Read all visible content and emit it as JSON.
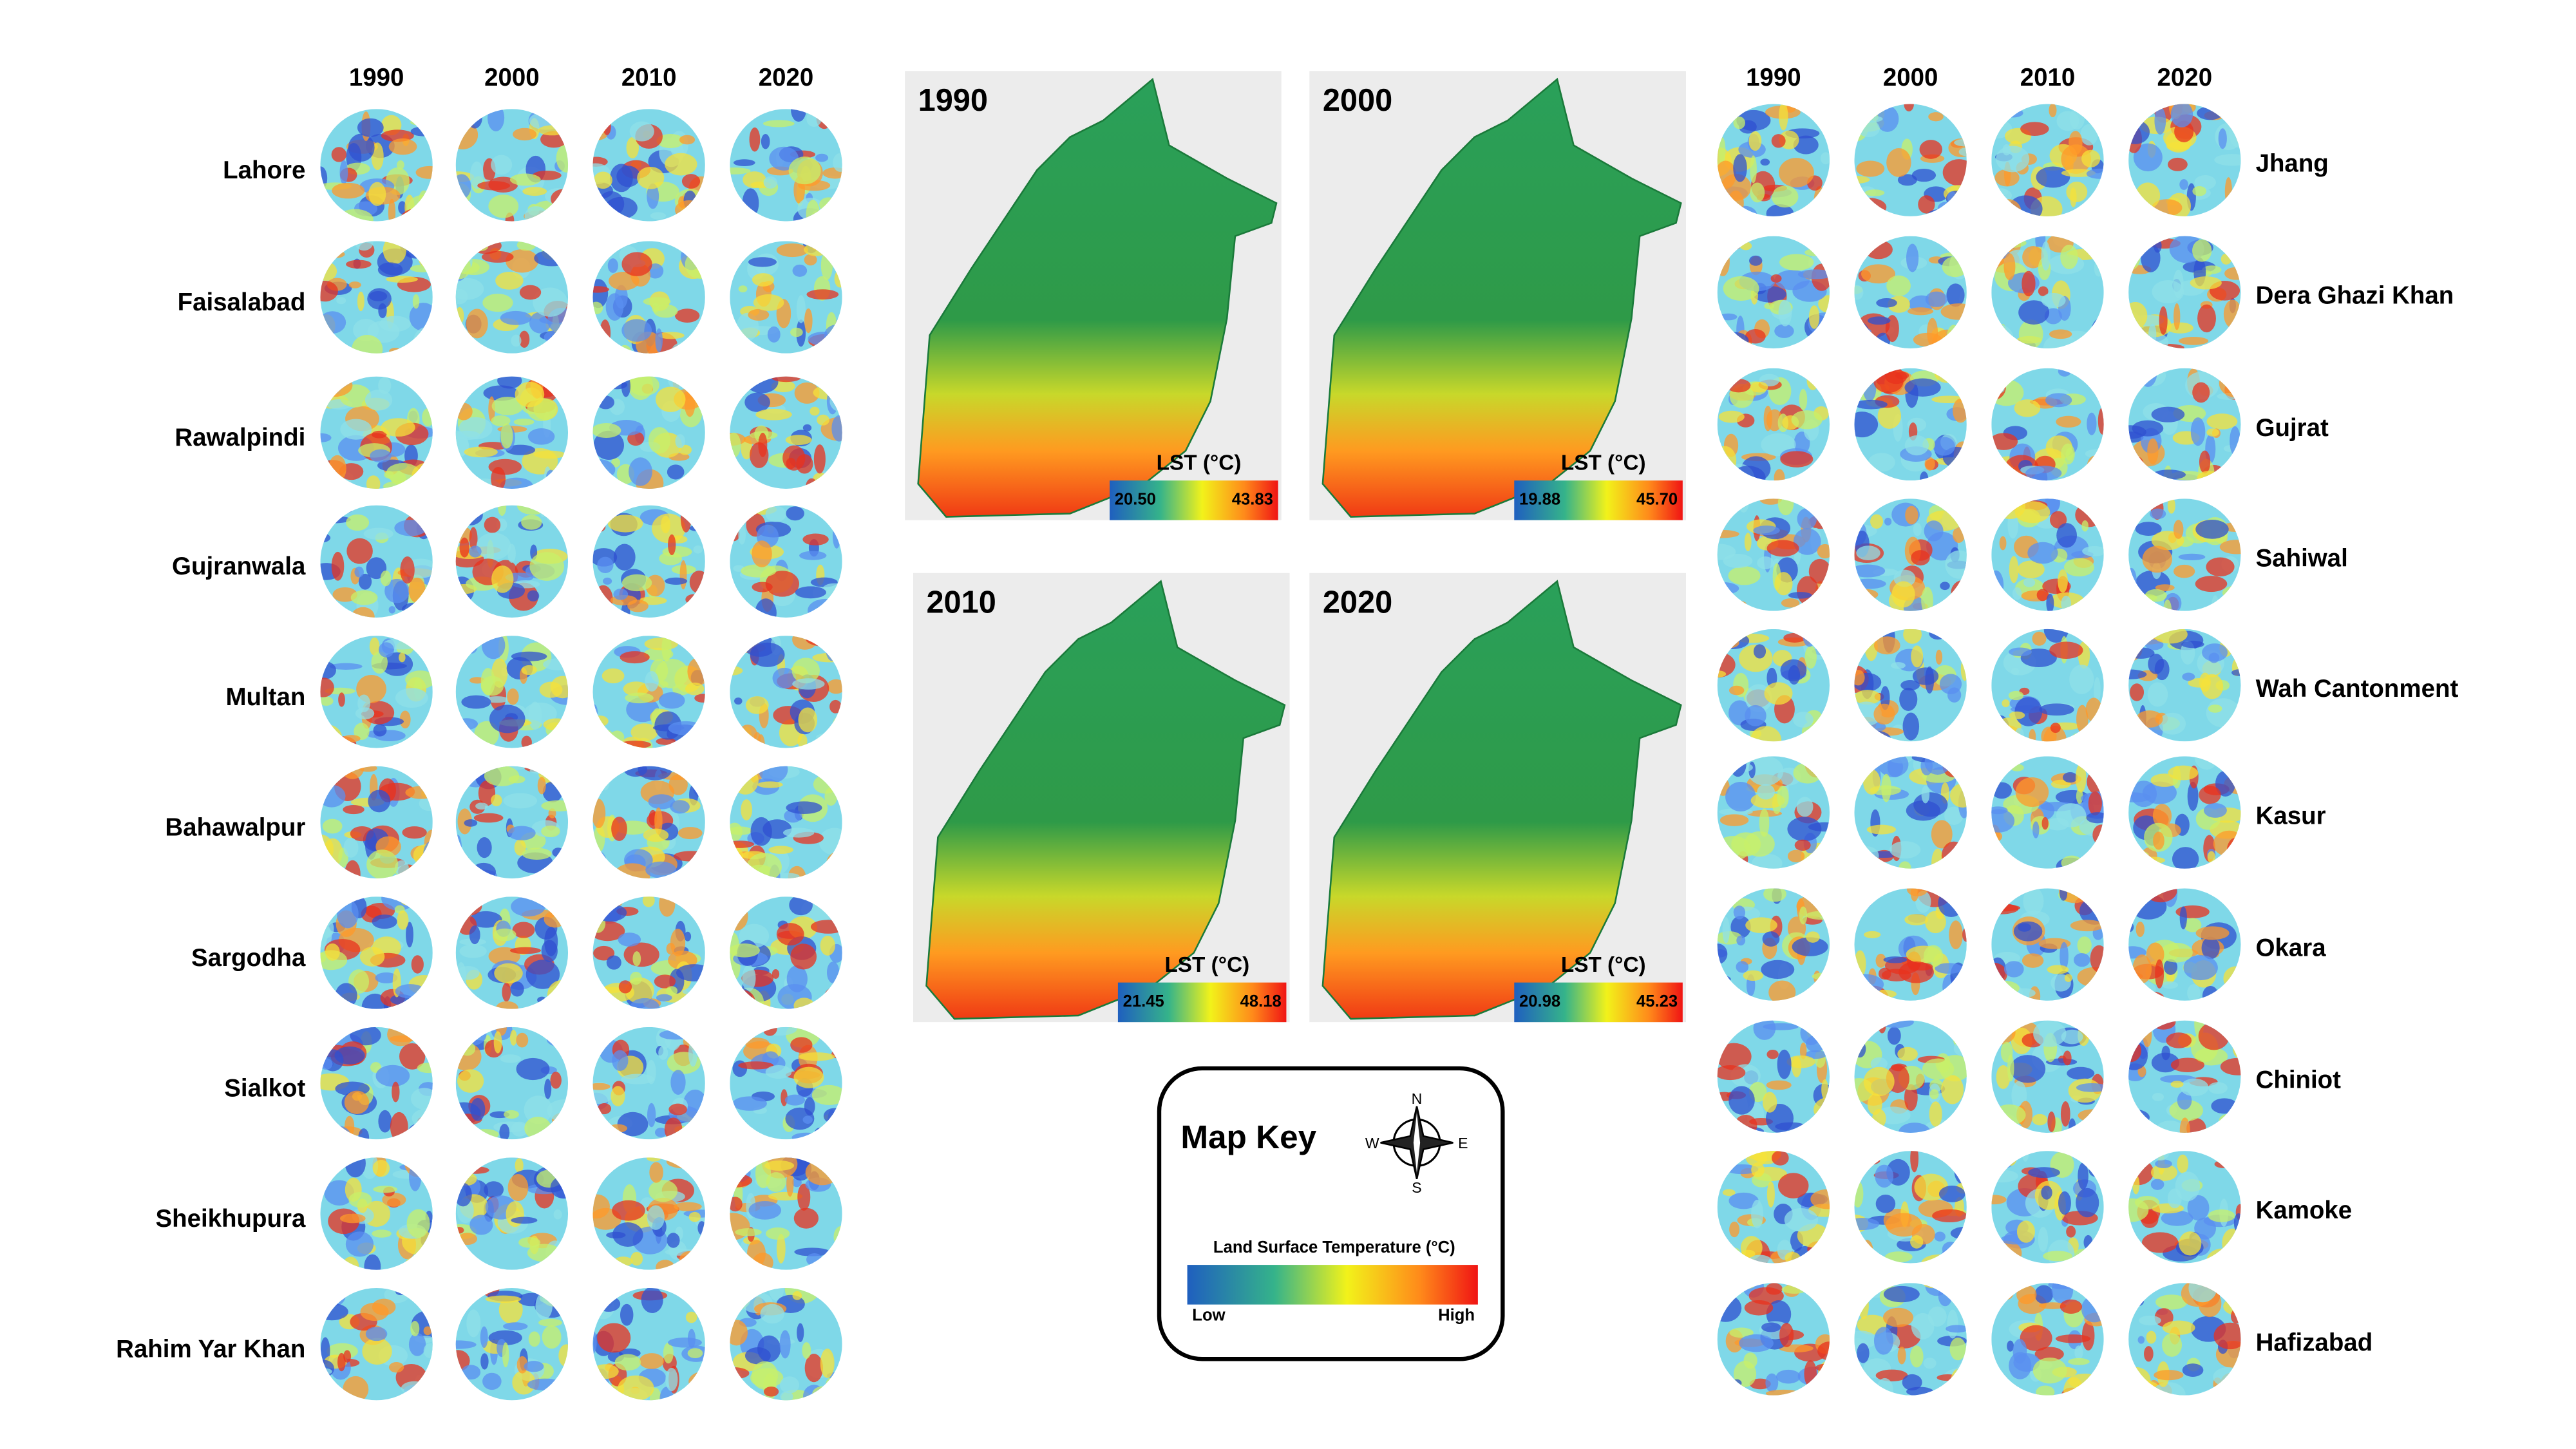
{
  "years": [
    "1990",
    "2000",
    "2010",
    "2020"
  ],
  "left_cities": [
    "Lahore",
    "Faisalabad",
    "Rawalpindi",
    "Gujranwala",
    "Multan",
    "Bahawalpur",
    "Sargodha",
    "Sialkot",
    "Sheikhupura",
    "Rahim Yar Khan"
  ],
  "right_cities": [
    "Jhang",
    "Dera Ghazi Khan",
    "Gujrat",
    "Sahiwal",
    "Wah Cantonment",
    "Kasur",
    "Okara",
    "Chiniot",
    "Kamoke",
    "Hafizabad"
  ],
  "maps": [
    {
      "year": "1990",
      "legend_title": "LST (°C)",
      "min": "20.50",
      "max": "43.83"
    },
    {
      "year": "2000",
      "legend_title": "LST (°C)",
      "min": "19.88",
      "max": "45.70"
    },
    {
      "year": "2010",
      "legend_title": "LST (°C)",
      "min": "21.45",
      "max": "48.18"
    },
    {
      "year": "2020",
      "legend_title": "LST (°C)",
      "min": "20.98",
      "max": "45.23"
    }
  ],
  "map_key": {
    "title": "Map Key",
    "compass": {
      "n": "N",
      "e": "E",
      "s": "S",
      "w": "W"
    },
    "legend_title": "Land Surface Temperature (°C)",
    "low": "Low",
    "high": "High"
  }
}
